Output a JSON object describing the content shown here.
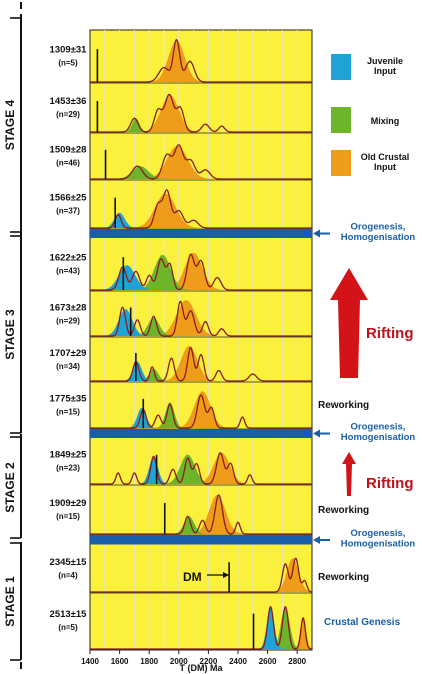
{
  "chart_data": {
    "type": "area",
    "xlabel": "T (DM) Ma",
    "xlim": [
      1400,
      2900
    ],
    "x_ticks": [
      "1400",
      "1600",
      "1800",
      "2000",
      "2200",
      "2400",
      "2600",
      "2800"
    ],
    "stages": [
      {
        "label": "STAGE 4"
      },
      {
        "label": "STAGE 3"
      },
      {
        "label": "STAGE 2"
      },
      {
        "label": "STAGE 1"
      }
    ],
    "legend": [
      {
        "label": "Juvenile\nInput",
        "color": "#1fa3d4"
      },
      {
        "label": "Mixing",
        "color": "#6cb52a"
      },
      {
        "label": "Old Crustal\nInput",
        "color": "#ee9c1a"
      }
    ],
    "rows": [
      {
        "age": "1309±31",
        "n": "(n=5)",
        "marker": 1450,
        "juvenile": [],
        "mixing": [],
        "old": [
          [
            1985,
            55,
            1.0
          ]
        ],
        "peaks": [
          [
            1900,
            35,
            0.35
          ],
          [
            1985,
            22,
            1.0
          ],
          [
            2075,
            30,
            0.5
          ]
        ]
      },
      {
        "age": "1453±36",
        "n": "(n=29)",
        "marker": 1450,
        "juvenile": [],
        "mixing": [
          [
            1710,
            25,
            0.35
          ]
        ],
        "old": [
          [
            1940,
            60,
            0.95
          ]
        ],
        "peaks": [
          [
            1700,
            25,
            0.35
          ],
          [
            1860,
            25,
            0.55
          ],
          [
            1935,
            30,
            0.95
          ],
          [
            2010,
            25,
            0.6
          ],
          [
            2180,
            25,
            0.2
          ],
          [
            2290,
            20,
            0.15
          ]
        ]
      },
      {
        "age": "1509±28",
        "n": "(n=46)",
        "marker": 1505,
        "juvenile": [],
        "mixing": [
          [
            1740,
            55,
            0.35
          ]
        ],
        "old": [
          [
            1990,
            70,
            0.9
          ]
        ],
        "peaks": [
          [
            1720,
            35,
            0.35
          ],
          [
            1920,
            30,
            0.65
          ],
          [
            2000,
            30,
            0.9
          ],
          [
            2080,
            30,
            0.5
          ],
          [
            2180,
            30,
            0.25
          ]
        ]
      },
      {
        "age": "1566±25",
        "n": "(n=37)",
        "marker": 1570,
        "juvenile": [
          [
            1600,
            35,
            0.4
          ]
        ],
        "mixing": [],
        "old": [
          [
            1910,
            70,
            0.9
          ]
        ],
        "peaks": [
          [
            1590,
            20,
            0.35
          ],
          [
            1860,
            25,
            0.6
          ],
          [
            1920,
            25,
            0.95
          ],
          [
            2000,
            30,
            0.45
          ],
          [
            2100,
            30,
            0.2
          ]
        ]
      },
      {
        "age": "1622±25",
        "n": "(n=43)",
        "marker": 1625,
        "juvenile": [
          [
            1650,
            55,
            0.6
          ]
        ],
        "mixing": [
          [
            1890,
            55,
            0.85
          ]
        ],
        "old": [
          [
            2100,
            60,
            0.9
          ]
        ],
        "peaks": [
          [
            1620,
            25,
            0.55
          ],
          [
            1710,
            25,
            0.45
          ],
          [
            1800,
            20,
            0.35
          ],
          [
            1880,
            25,
            0.75
          ],
          [
            1940,
            20,
            0.6
          ],
          [
            2080,
            25,
            0.85
          ],
          [
            2150,
            25,
            0.7
          ],
          [
            2260,
            25,
            0.3
          ]
        ]
      },
      {
        "age": "1673±28",
        "n": "(n=29)",
        "marker": 1675,
        "juvenile": [
          [
            1640,
            45,
            0.75
          ]
        ],
        "mixing": [
          [
            1830,
            40,
            0.5
          ]
        ],
        "old": [
          [
            2050,
            65,
            1.0
          ]
        ],
        "peaks": [
          [
            1620,
            20,
            0.8
          ],
          [
            1720,
            20,
            0.45
          ],
          [
            1830,
            20,
            0.55
          ],
          [
            2010,
            20,
            0.95
          ],
          [
            2080,
            25,
            0.7
          ],
          [
            2180,
            20,
            0.4
          ],
          [
            2290,
            20,
            0.2
          ]
        ]
      },
      {
        "age": "1707±29",
        "n": "(n=34)",
        "marker": 1710,
        "juvenile": [
          [
            1720,
            30,
            0.55
          ]
        ],
        "mixing": [
          [
            1830,
            30,
            0.35
          ]
        ],
        "old": [
          [
            2070,
            55,
            1.0
          ]
        ],
        "peaks": [
          [
            1710,
            20,
            0.55
          ],
          [
            1820,
            15,
            0.4
          ],
          [
            1950,
            20,
            0.65
          ],
          [
            2080,
            20,
            0.95
          ],
          [
            2150,
            20,
            0.75
          ],
          [
            2270,
            20,
            0.3
          ],
          [
            2500,
            25,
            0.2
          ]
        ]
      },
      {
        "age": "1775±35",
        "n": "(n=15)",
        "marker": 1760,
        "juvenile": [
          [
            1750,
            30,
            0.55
          ]
        ],
        "mixing": [
          [
            1940,
            30,
            0.7
          ]
        ],
        "old": [
          [
            2160,
            55,
            1.0
          ]
        ],
        "peaks": [
          [
            1760,
            20,
            0.5
          ],
          [
            1860,
            20,
            0.35
          ],
          [
            1940,
            20,
            0.65
          ],
          [
            2150,
            25,
            0.9
          ],
          [
            2220,
            20,
            0.55
          ],
          [
            2430,
            15,
            0.3
          ]
        ]
      },
      {
        "age": "1849±25",
        "n": "(n=23)",
        "marker": 1850,
        "juvenile": [
          [
            1830,
            30,
            0.75
          ]
        ],
        "mixing": [
          [
            2060,
            50,
            0.8
          ]
        ],
        "old": [
          [
            2290,
            55,
            0.85
          ]
        ],
        "peaks": [
          [
            1590,
            15,
            0.3
          ],
          [
            1700,
            15,
            0.3
          ],
          [
            1830,
            20,
            0.75
          ],
          [
            1960,
            20,
            0.4
          ],
          [
            2060,
            20,
            0.7
          ],
          [
            2120,
            20,
            0.55
          ],
          [
            2280,
            25,
            0.85
          ],
          [
            2350,
            20,
            0.55
          ],
          [
            2480,
            15,
            0.25
          ]
        ]
      },
      {
        "age": "1909±29",
        "n": "(n=15)",
        "marker": 1905,
        "juvenile": [],
        "mixing": [
          [
            2070,
            35,
            0.45
          ]
        ],
        "old": [
          [
            2260,
            55,
            1.0
          ]
        ],
        "peaks": [
          [
            2060,
            20,
            0.45
          ],
          [
            2160,
            20,
            0.35
          ],
          [
            2270,
            25,
            1.0
          ],
          [
            2400,
            15,
            0.3
          ]
        ]
      },
      {
        "age": "2345±15",
        "n": "(n=4)",
        "marker": 2340,
        "juvenile": [],
        "mixing": [],
        "old": [
          [
            2770,
            40,
            0.9
          ]
        ],
        "peaks": [
          [
            2720,
            20,
            0.75
          ],
          [
            2790,
            20,
            0.9
          ],
          [
            2850,
            15,
            0.3
          ]
        ]
      },
      {
        "age": "2513±15",
        "n": "(n=5)",
        "marker": 2505,
        "juvenile": [
          [
            2620,
            25,
            0.95
          ]
        ],
        "mixing": [
          [
            2720,
            30,
            0.95
          ]
        ],
        "old": [
          [
            2840,
            20,
            0.7
          ]
        ],
        "peaks": [
          [
            2620,
            20,
            0.95
          ],
          [
            2720,
            20,
            0.95
          ],
          [
            2840,
            15,
            0.7
          ]
        ]
      }
    ],
    "annotations": {
      "orogenesis": "Orogenesis,\nHomogenisation",
      "rifting": "Rifting",
      "reworking": "Reworking",
      "crustal_genesis": "Crustal Genesis",
      "dm": "DM"
    }
  }
}
